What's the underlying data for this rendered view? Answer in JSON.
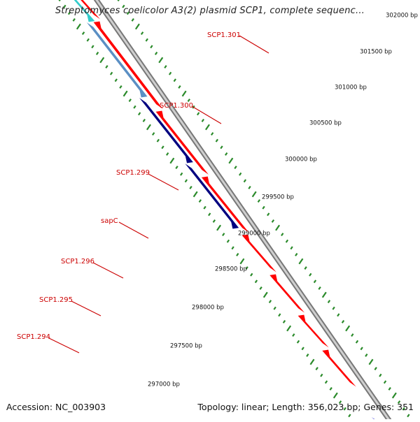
{
  "title": "Streptomyces coelicolor A3(2) plasmid SCP1, complete sequenc...",
  "footer": {
    "accession": "Accession: NC_003903",
    "summary": "Topology: linear; Length: 356,023 bp; Genes: 351"
  },
  "colors": {
    "forward_gene": "#ff0000",
    "reverse_gene_dark": "#000080",
    "reverse_gene_light": "#5b8fc4",
    "reverse_gene_cyan": "#33cccc",
    "backbone": "#888888",
    "tick": "#2a8a2a",
    "label": "#cc0000"
  },
  "ruler": [
    {
      "label": "297000 bp"
    },
    {
      "label": "297500 bp"
    },
    {
      "label": "298000 bp"
    },
    {
      "label": "298500 bp"
    },
    {
      "label": "299000 bp"
    },
    {
      "label": "299500 bp"
    },
    {
      "label": "300000 bp"
    },
    {
      "label": "300500 bp"
    },
    {
      "label": "301000 bp"
    },
    {
      "label": "301500 bp"
    },
    {
      "label": "302000 bp"
    }
  ],
  "genes": [
    {
      "name": "SCP1.294",
      "strand": "forward"
    },
    {
      "name": "SCP1.295",
      "strand": "forward"
    },
    {
      "name": "SCP1.296",
      "strand": "forward"
    },
    {
      "name": "sapC",
      "strand": "forward"
    },
    {
      "name": "SCP1.299",
      "strand": "reverse"
    },
    {
      "name": "SCP1.300",
      "strand": "reverse"
    },
    {
      "name": "SCP1.301",
      "strand": "reverse"
    }
  ]
}
